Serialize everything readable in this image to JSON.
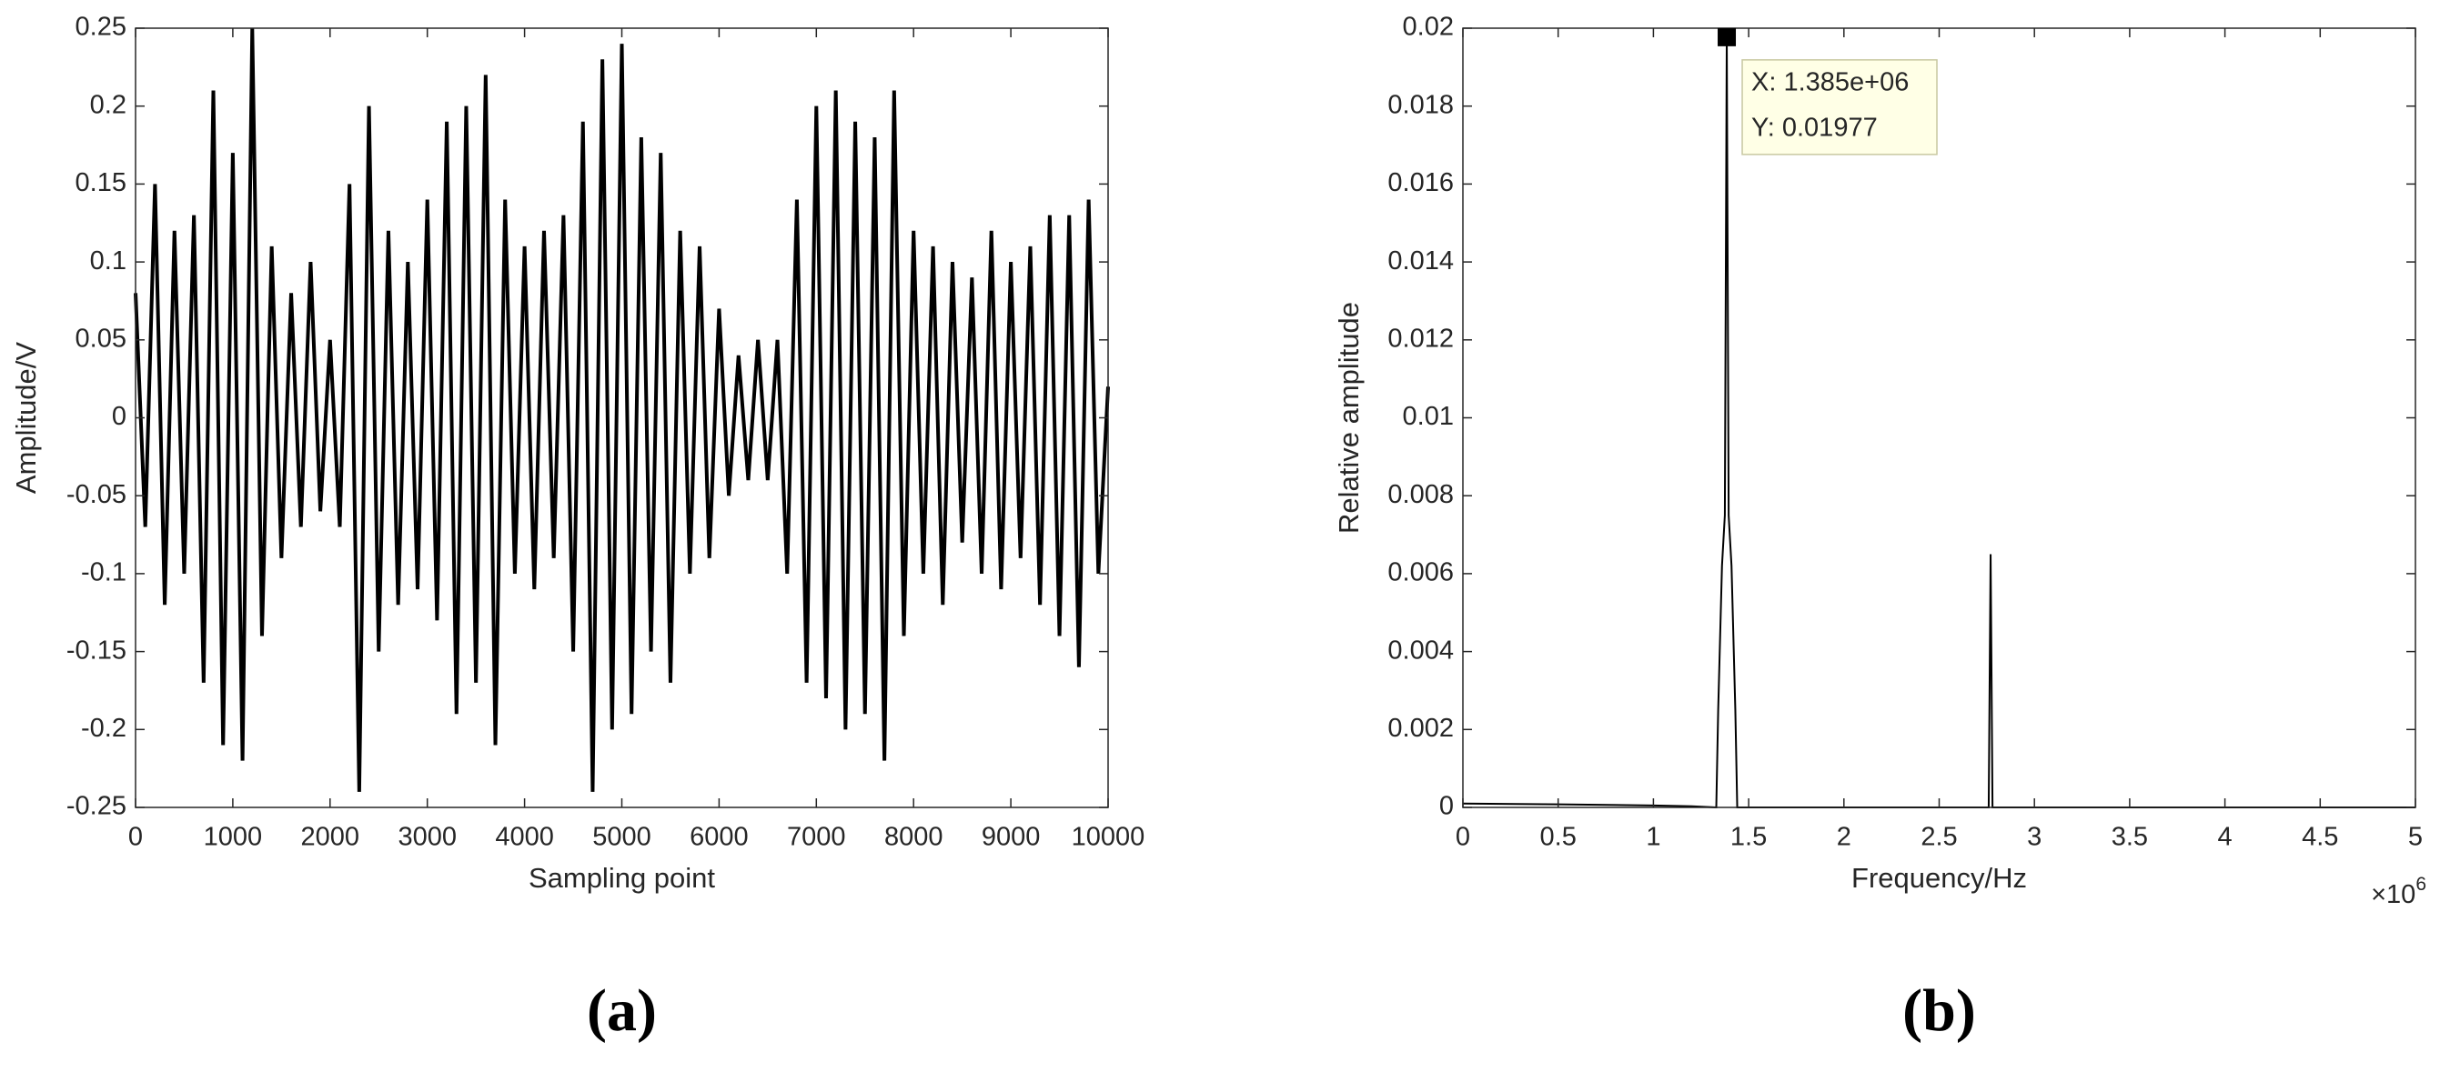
{
  "chart_data": [
    {
      "type": "line",
      "panel_label": "(a)",
      "x_label": "Sampling point",
      "y_label": "Amplitude/V",
      "color": "#000000",
      "x": [
        0,
        100,
        200,
        300,
        400,
        500,
        600,
        700,
        800,
        900,
        1000,
        1100,
        1200,
        1300,
        1400,
        1500,
        1600,
        1700,
        1800,
        1900,
        2000,
        2100,
        2200,
        2300,
        2400,
        2500,
        2600,
        2700,
        2800,
        2900,
        3000,
        3100,
        3200,
        3300,
        3400,
        3500,
        3600,
        3700,
        3800,
        3900,
        4000,
        4100,
        4200,
        4300,
        4400,
        4500,
        4600,
        4700,
        4800,
        4900,
        5000,
        5100,
        5200,
        5300,
        5400,
        5500,
        5600,
        5700,
        5800,
        5900,
        6000,
        6100,
        6200,
        6300,
        6400,
        6500,
        6600,
        6700,
        6800,
        6900,
        7000,
        7100,
        7200,
        7300,
        7400,
        7500,
        7600,
        7700,
        7800,
        7900,
        8000,
        8100,
        8200,
        8300,
        8400,
        8500,
        8600,
        8700,
        8800,
        8900,
        9000,
        9100,
        9200,
        9300,
        9400,
        9500,
        9600,
        9700,
        9800,
        9900,
        10000
      ],
      "values": [
        0.08,
        -0.07,
        0.15,
        -0.12,
        0.12,
        -0.1,
        0.13,
        -0.17,
        0.21,
        -0.21,
        0.17,
        -0.22,
        0.25,
        -0.14,
        0.11,
        -0.09,
        0.08,
        -0.07,
        0.1,
        -0.06,
        0.05,
        -0.07,
        0.15,
        -0.24,
        0.2,
        -0.15,
        0.12,
        -0.12,
        0.1,
        -0.11,
        0.14,
        -0.13,
        0.19,
        -0.19,
        0.2,
        -0.17,
        0.22,
        -0.21,
        0.14,
        -0.1,
        0.11,
        -0.11,
        0.12,
        -0.09,
        0.13,
        -0.15,
        0.19,
        -0.24,
        0.23,
        -0.2,
        0.24,
        -0.19,
        0.18,
        -0.15,
        0.17,
        -0.17,
        0.12,
        -0.1,
        0.11,
        -0.09,
        0.07,
        -0.05,
        0.04,
        -0.04,
        0.05,
        -0.04,
        0.05,
        -0.1,
        0.14,
        -0.17,
        0.2,
        -0.18,
        0.21,
        -0.2,
        0.19,
        -0.19,
        0.18,
        -0.22,
        0.21,
        -0.14,
        0.12,
        -0.1,
        0.11,
        -0.12,
        0.1,
        -0.08,
        0.09,
        -0.1,
        0.12,
        -0.11,
        0.1,
        -0.09,
        0.11,
        -0.12,
        0.13,
        -0.14,
        0.13,
        -0.16,
        0.14,
        -0.1,
        0.02
      ],
      "xlim": [
        0,
        10000
      ],
      "xticks": [
        0,
        1000,
        2000,
        3000,
        4000,
        5000,
        6000,
        7000,
        8000,
        9000,
        10000
      ],
      "ylim": [
        -0.25,
        0.25
      ],
      "yticks": [
        -0.25,
        -0.2,
        -0.15,
        -0.1,
        -0.05,
        0,
        0.05,
        0.1,
        0.15,
        0.2,
        0.25
      ]
    },
    {
      "type": "line",
      "panel_label": "(b)",
      "x_label": "Frequency/Hz",
      "y_label": "Relative amplitude",
      "color": "#000000",
      "x_exponent_base": "×10",
      "x_exponent": "6",
      "x": [
        0,
        500000,
        1000000,
        1200000,
        1330000,
        1340000,
        1360000,
        1375000,
        1385000,
        1395000,
        1410000,
        1430000,
        1440000,
        2760000,
        2770000,
        2780000,
        5000000
      ],
      "values": [
        0.0001,
        8e-05,
        5e-05,
        3e-05,
        0,
        0.0025,
        0.0062,
        0.0075,
        0.01977,
        0.0075,
        0.0062,
        0.0025,
        0,
        0,
        0.0065,
        0,
        0
      ],
      "xlim": [
        0,
        5000000
      ],
      "xticks": [
        {
          "value": 0,
          "label": "0"
        },
        {
          "value": 500000,
          "label": "0.5"
        },
        {
          "value": 1000000,
          "label": "1"
        },
        {
          "value": 1500000,
          "label": "1.5"
        },
        {
          "value": 2000000,
          "label": "2"
        },
        {
          "value": 2500000,
          "label": "2.5"
        },
        {
          "value": 3000000,
          "label": "3"
        },
        {
          "value": 3500000,
          "label": "3.5"
        },
        {
          "value": 4000000,
          "label": "4"
        },
        {
          "value": 4500000,
          "label": "4.5"
        },
        {
          "value": 5000000,
          "label": "5"
        }
      ],
      "ylim": [
        0,
        0.02
      ],
      "yticks": [
        0,
        0.002,
        0.004,
        0.006,
        0.008,
        0.01,
        0.012,
        0.014,
        0.016,
        0.018,
        0.02
      ],
      "datatip": {
        "index": 8,
        "x_text": "X: 1.385e+06",
        "y_text": "Y: 0.01977"
      }
    }
  ]
}
